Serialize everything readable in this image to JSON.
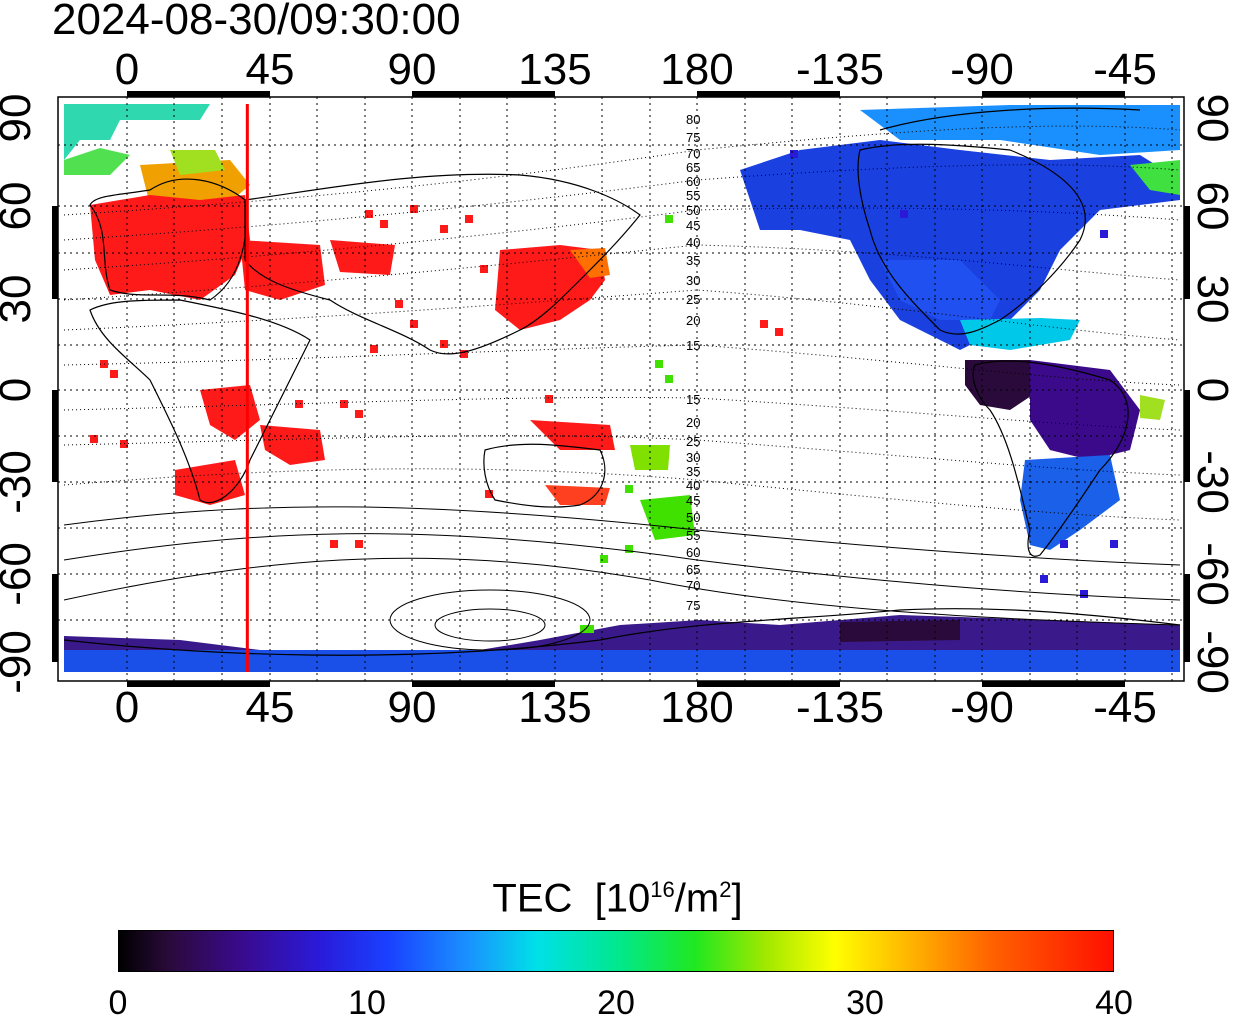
{
  "timestamp": "2024-08-30/09:30:00",
  "map": {
    "lon_tick_labels": [
      "0",
      "45",
      "90",
      "135",
      "180",
      "-135",
      "-90",
      "-45"
    ],
    "lat_tick_labels_left": [
      "90",
      "60",
      "30",
      "0",
      "-30",
      "-60",
      "-90"
    ],
    "lat_tick_labels_right": [
      "90",
      "60",
      "30",
      "0",
      "-30",
      "-60",
      "-90"
    ],
    "contour_labels_north": [
      "80",
      "75",
      "70",
      "65",
      "60",
      "55",
      "50",
      "45",
      "40",
      "35",
      "30",
      "25",
      "20",
      "15"
    ],
    "contour_labels_south": [
      "15",
      "20",
      "25",
      "30",
      "35",
      "40",
      "45",
      "50",
      "55",
      "60",
      "65",
      "70",
      "75"
    ],
    "marker_line_color": "#ff0000",
    "marker_line_lon": 38
  },
  "colorbar": {
    "title": "TEC",
    "unit_prefix": "[10",
    "unit_exp": "16",
    "unit_mid": "/m",
    "unit_exp2": "2",
    "unit_suffix": "]",
    "ticks": [
      "0",
      "10",
      "20",
      "30",
      "40"
    ],
    "range": [
      0,
      40
    ]
  },
  "colors": {
    "high_tec": "#ff1a1a",
    "mid_tec": "#40e000",
    "low_tec": "#1a30e0",
    "very_low_tec": "#2a0a4a",
    "cyan_tec": "#00d0e8"
  }
}
